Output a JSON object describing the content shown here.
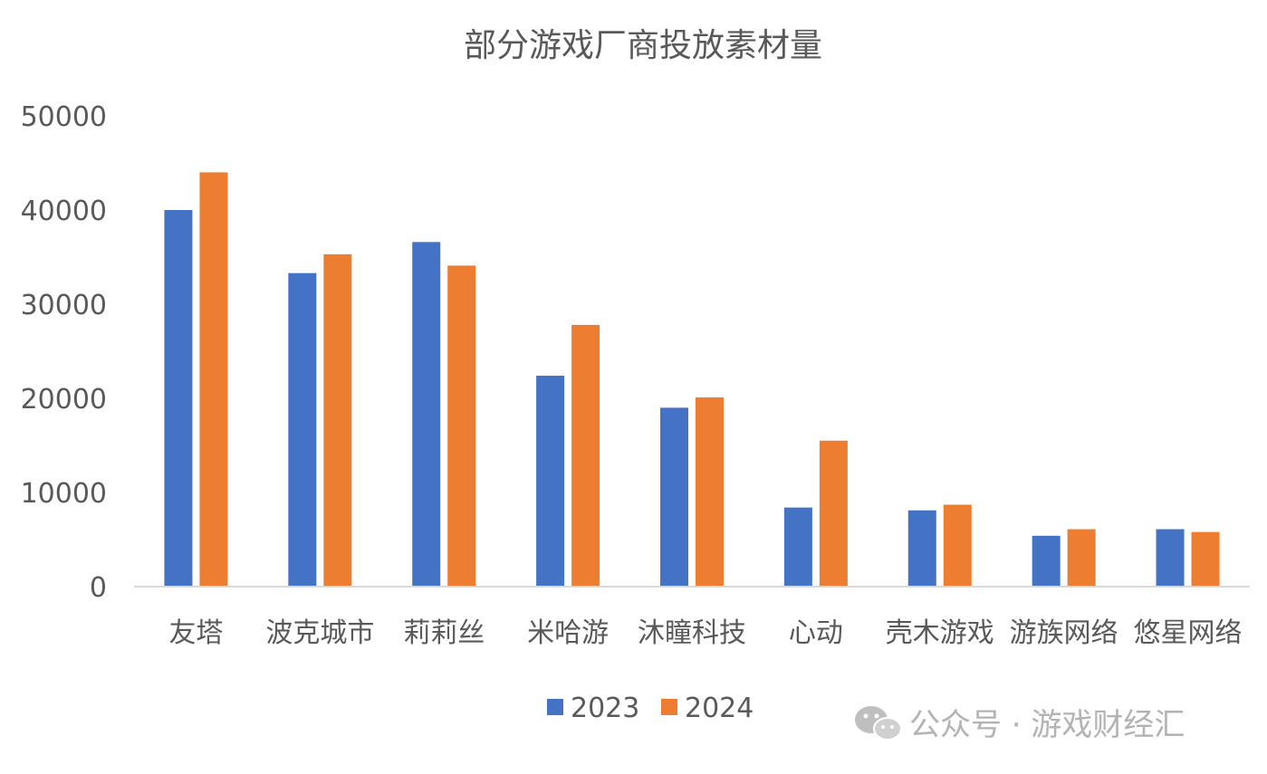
{
  "chart_data": {
    "type": "bar",
    "title": "部分游戏厂商投放素材量",
    "xlabel": "",
    "ylabel": "",
    "ylim": [
      0,
      50000
    ],
    "yticks": [
      0,
      10000,
      20000,
      30000,
      40000,
      50000
    ],
    "grid": false,
    "legend_position": "bottom",
    "categories": [
      "友塔",
      "波克城市",
      "莉莉丝",
      "米哈游",
      "沐瞳科技",
      "心动",
      "壳木游戏",
      "游族网络",
      "悠星网络"
    ],
    "series": [
      {
        "name": "2023",
        "color": "#4472C4",
        "values": [
          40000,
          33300,
          36600,
          22400,
          19000,
          8400,
          8100,
          5400,
          6100
        ]
      },
      {
        "name": "2024",
        "color": "#ED7D31",
        "values": [
          44000,
          35300,
          34100,
          27800,
          20100,
          15500,
          8700,
          6100,
          5800
        ]
      }
    ]
  },
  "watermark": {
    "icon": "wechat-icon",
    "text": "公众号 · 游戏财经汇"
  }
}
